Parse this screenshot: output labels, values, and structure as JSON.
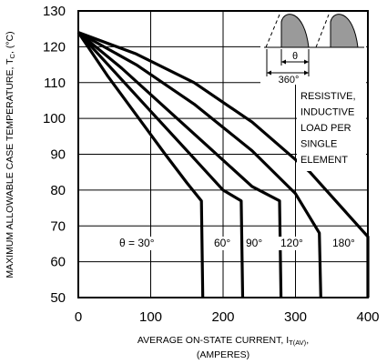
{
  "chart_data": {
    "type": "line",
    "title": "",
    "xlabel": {
      "main": "AVERAGE ON-STATE  CURRENT, I",
      "sub": "T(AV)",
      "suffix": ",",
      "line2": "(AMPERES)"
    },
    "ylabel": {
      "main": "MAXIMUM ALLOWABLE CASE TEMPERATURE, T",
      "sub": "C",
      "suffix": ", (°C)"
    },
    "xlim": [
      0,
      400
    ],
    "ylim": [
      50,
      130
    ],
    "xticks": [
      0,
      100,
      200,
      300,
      400
    ],
    "yticks": [
      50,
      60,
      70,
      80,
      90,
      100,
      110,
      120,
      130
    ],
    "grid": true,
    "annotation": [
      "RESISTIVE,",
      "INDUCTIVE",
      "LOAD PER",
      "SINGLE",
      "ELEMENT"
    ],
    "inset": {
      "theta": "θ",
      "period": "360°"
    },
    "series": [
      {
        "label": "θ = 30°",
        "points": [
          [
            0,
            124
          ],
          [
            40,
            112
          ],
          [
            80,
            101
          ],
          [
            120,
            90
          ],
          [
            150,
            82
          ],
          [
            170,
            77
          ],
          [
            172,
            50
          ]
        ]
      },
      {
        "label": "60°",
        "points": [
          [
            0,
            124
          ],
          [
            50,
            113
          ],
          [
            100,
            102
          ],
          [
            150,
            91
          ],
          [
            200,
            80
          ],
          [
            225,
            77
          ],
          [
            227,
            50
          ]
        ]
      },
      {
        "label": "90°",
        "points": [
          [
            0,
            124
          ],
          [
            60,
            114
          ],
          [
            120,
            103
          ],
          [
            180,
            92
          ],
          [
            240,
            81
          ],
          [
            278,
            77
          ],
          [
            280,
            50
          ]
        ]
      },
      {
        "label": "120°",
        "points": [
          [
            0,
            124
          ],
          [
            80,
            115
          ],
          [
            160,
            104
          ],
          [
            240,
            91
          ],
          [
            300,
            79
          ],
          [
            333,
            68
          ],
          [
            335,
            50
          ]
        ]
      },
      {
        "label": "180°",
        "points": [
          [
            0,
            124
          ],
          [
            80,
            118
          ],
          [
            160,
            110
          ],
          [
            240,
            99
          ],
          [
            320,
            85
          ],
          [
            400,
            67
          ],
          [
            400,
            50
          ]
        ]
      }
    ]
  }
}
